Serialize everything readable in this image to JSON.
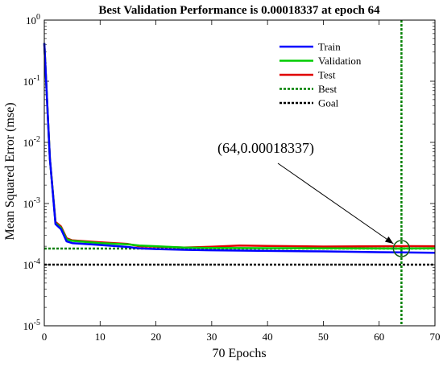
{
  "chart_data": {
    "type": "line",
    "title": "Best Validation Performance is 0.00018337 at epoch 64",
    "xlabel": "70 Epochs",
    "ylabel": "Mean Squared Error  (mse)",
    "xlim": [
      0,
      70
    ],
    "ylim": [
      1e-05,
      1
    ],
    "yscale": "log",
    "grid": false,
    "legend_position": "top-right",
    "x_ticks": [
      "0",
      "10",
      "20",
      "30",
      "40",
      "50",
      "60",
      "70"
    ],
    "y_ticks": [
      {
        "value": 1,
        "base": "10",
        "exp": "0"
      },
      {
        "value": 0.1,
        "base": "10",
        "exp": "-1"
      },
      {
        "value": 0.01,
        "base": "10",
        "exp": "-2"
      },
      {
        "value": 0.001,
        "base": "10",
        "exp": "-3"
      },
      {
        "value": 0.0001,
        "base": "10",
        "exp": "-4"
      },
      {
        "value": 1e-05,
        "base": "10",
        "exp": "-5"
      }
    ],
    "series": [
      {
        "name": "Train",
        "color": "#0000ff",
        "style": "solid",
        "x": [
          0,
          1,
          2,
          3,
          4,
          5,
          10,
          15,
          17,
          20,
          25,
          30,
          40,
          50,
          60,
          64,
          70
        ],
        "y": [
          0.42,
          0.0055,
          0.00046,
          0.00038,
          0.00024,
          0.000225,
          0.00021,
          0.000195,
          0.000185,
          0.00018,
          0.000175,
          0.000172,
          0.000168,
          0.000165,
          0.00016,
          0.000159,
          0.000156
        ]
      },
      {
        "name": "Validation",
        "color": "#00cc00",
        "style": "solid",
        "x": [
          0,
          1,
          2,
          3,
          4,
          5,
          10,
          15,
          17,
          20,
          25,
          30,
          40,
          50,
          60,
          64,
          70
        ],
        "y": [
          0.42,
          0.0055,
          0.00048,
          0.0004,
          0.00026,
          0.000245,
          0.000225,
          0.000215,
          0.000205,
          0.0002,
          0.00019,
          0.000188,
          0.000186,
          0.000185,
          0.000184,
          0.00018337,
          0.000185
        ]
      },
      {
        "name": "Test",
        "color": "#e00000",
        "style": "solid",
        "x": [
          0,
          1,
          2,
          3,
          4,
          5,
          10,
          15,
          17,
          20,
          25,
          30,
          35,
          40,
          50,
          60,
          64,
          70
        ],
        "y": [
          0.42,
          0.0055,
          0.0005,
          0.00042,
          0.00027,
          0.00025,
          0.000232,
          0.000218,
          0.0002,
          0.000197,
          0.00019,
          0.000196,
          0.000205,
          0.000202,
          0.000198,
          0.0002,
          0.000201,
          0.0002
        ]
      }
    ],
    "best": {
      "name": "Best",
      "epoch": 64,
      "value": 0.00018337,
      "color": "#007f00",
      "style": "dotted"
    },
    "goal": {
      "name": "Goal",
      "value": 0.0001,
      "color": "#000000",
      "style": "dotted"
    },
    "annotation": {
      "text": "(64,0.00018337)",
      "points_to": [
        64,
        0.00018337
      ]
    }
  }
}
